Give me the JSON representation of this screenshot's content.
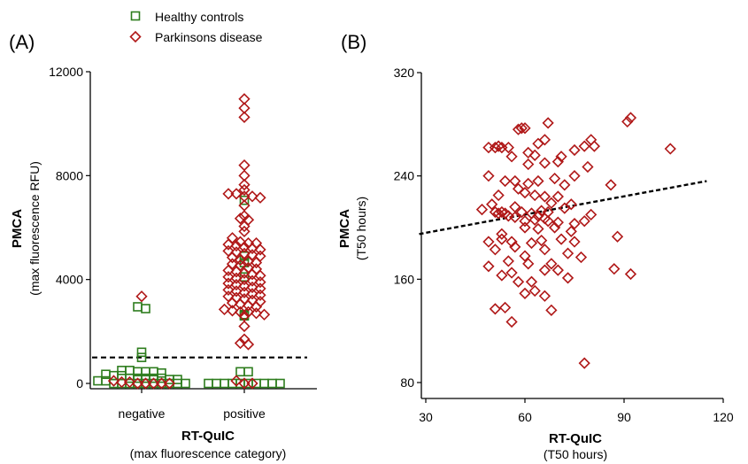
{
  "legend": [
    {
      "label": "Healthy controls",
      "marker": "square",
      "color": "#2e7d1e"
    },
    {
      "label": "Parkinsons disease",
      "marker": "diamond",
      "color": "#b01818"
    }
  ],
  "colors": {
    "healthy": "#2e7d1e",
    "parkinsons": "#b01818",
    "axis": "#000000"
  },
  "chart_data": [
    {
      "panel": "(A)",
      "type": "scatter",
      "xlabel": "RT-QuIC",
      "xlabel_sub": "(max fluorescence category)",
      "ylabel": "PMCA",
      "ylabel_sub": "(max fluorescence RFU)",
      "categories": [
        "negative",
        "positive"
      ],
      "ylim": [
        0,
        12000
      ],
      "yticks": [
        0,
        4000,
        8000,
        12000
      ],
      "threshold": 1000,
      "series": [
        {
          "name": "Healthy controls",
          "points": [
            [
              "negative",
              2950
            ],
            [
              "negative",
              2880
            ],
            [
              "negative",
              1200
            ],
            [
              "negative",
              1000
            ],
            [
              "negative",
              500
            ],
            [
              "negative",
              500
            ],
            [
              "negative",
              450
            ],
            [
              "negative",
              450
            ],
            [
              "negative",
              450
            ],
            [
              "negative",
              400
            ],
            [
              "negative",
              350
            ],
            [
              "negative",
              300
            ],
            [
              "negative",
              300
            ],
            [
              "negative",
              200
            ],
            [
              "negative",
              200
            ],
            [
              "negative",
              200
            ],
            [
              "negative",
              200
            ],
            [
              "negative",
              200
            ],
            [
              "negative",
              150
            ],
            [
              "negative",
              150
            ],
            [
              "negative",
              100
            ],
            [
              "negative",
              100
            ],
            [
              "negative",
              0
            ],
            [
              "negative",
              0
            ],
            [
              "negative",
              0
            ],
            [
              "negative",
              0
            ],
            [
              "negative",
              0
            ],
            [
              "negative",
              0
            ],
            [
              "negative",
              0
            ],
            [
              "negative",
              0
            ],
            [
              "negative",
              0
            ],
            [
              "negative",
              0
            ],
            [
              "positive",
              7050
            ],
            [
              "positive",
              4900
            ],
            [
              "positive",
              4650
            ],
            [
              "positive",
              4100
            ],
            [
              "positive",
              2650
            ],
            [
              "positive",
              2600
            ],
            [
              "positive",
              450
            ],
            [
              "positive",
              450
            ],
            [
              "positive",
              0
            ],
            [
              "positive",
              0
            ],
            [
              "positive",
              0
            ],
            [
              "positive",
              0
            ],
            [
              "positive",
              0
            ],
            [
              "positive",
              0
            ],
            [
              "positive",
              0
            ],
            [
              "positive",
              0
            ],
            [
              "positive",
              0
            ],
            [
              "positive",
              0
            ]
          ]
        },
        {
          "name": "Parkinsons disease",
          "points": [
            [
              "negative",
              3350
            ],
            [
              "negative",
              100
            ],
            [
              "negative",
              50
            ],
            [
              "negative",
              50
            ],
            [
              "negative",
              0
            ],
            [
              "negative",
              0
            ],
            [
              "negative",
              0
            ],
            [
              "negative",
              0
            ],
            [
              "negative",
              0
            ],
            [
              "positive",
              10950
            ],
            [
              "positive",
              10600
            ],
            [
              "positive",
              10250
            ],
            [
              "positive",
              8400
            ],
            [
              "positive",
              8000
            ],
            [
              "positive",
              7650
            ],
            [
              "positive",
              7450
            ],
            [
              "positive",
              7300
            ],
            [
              "positive",
              7300
            ],
            [
              "positive",
              7200
            ],
            [
              "positive",
              7200
            ],
            [
              "positive",
              7150
            ],
            [
              "positive",
              6850
            ],
            [
              "positive",
              6450
            ],
            [
              "positive",
              6350
            ],
            [
              "positive",
              6300
            ],
            [
              "positive",
              6050
            ],
            [
              "positive",
              5850
            ],
            [
              "positive",
              5600
            ],
            [
              "positive",
              5450
            ],
            [
              "positive",
              5400
            ],
            [
              "positive",
              5400
            ],
            [
              "positive",
              5350
            ],
            [
              "positive",
              5300
            ],
            [
              "positive",
              5250
            ],
            [
              "positive",
              5200
            ],
            [
              "positive",
              5150
            ],
            [
              "positive",
              5100
            ],
            [
              "positive",
              5050
            ],
            [
              "positive",
              5000
            ],
            [
              "positive",
              4950
            ],
            [
              "positive",
              4900
            ],
            [
              "positive",
              4850
            ],
            [
              "positive",
              4750
            ],
            [
              "positive",
              4700
            ],
            [
              "positive",
              4650
            ],
            [
              "positive",
              4600
            ],
            [
              "positive",
              4550
            ],
            [
              "positive",
              4450
            ],
            [
              "positive",
              4400
            ],
            [
              "positive",
              4350
            ],
            [
              "positive",
              4300
            ],
            [
              "positive",
              4250
            ],
            [
              "positive",
              4200
            ],
            [
              "positive",
              4150
            ],
            [
              "positive",
              4100
            ],
            [
              "positive",
              4050
            ],
            [
              "positive",
              4000
            ],
            [
              "positive",
              3950
            ],
            [
              "positive",
              3900
            ],
            [
              "positive",
              3850
            ],
            [
              "positive",
              3800
            ],
            [
              "positive",
              3750
            ],
            [
              "positive",
              3700
            ],
            [
              "positive",
              3650
            ],
            [
              "positive",
              3600
            ],
            [
              "positive",
              3550
            ],
            [
              "positive",
              3500
            ],
            [
              "positive",
              3450
            ],
            [
              "positive",
              3400
            ],
            [
              "positive",
              3350
            ],
            [
              "positive",
              3300
            ],
            [
              "positive",
              3250
            ],
            [
              "positive",
              3200
            ],
            [
              "positive",
              3150
            ],
            [
              "positive",
              3100
            ],
            [
              "positive",
              3050
            ],
            [
              "positive",
              3000
            ],
            [
              "positive",
              2950
            ],
            [
              "positive",
              2850
            ],
            [
              "positive",
              2800
            ],
            [
              "positive",
              2750
            ],
            [
              "positive",
              2750
            ],
            [
              "positive",
              2700
            ],
            [
              "positive",
              2650
            ],
            [
              "positive",
              2600
            ],
            [
              "positive",
              2200
            ],
            [
              "positive",
              1700
            ],
            [
              "positive",
              1550
            ],
            [
              "positive",
              1500
            ],
            [
              "positive",
              100
            ],
            [
              "positive",
              0
            ],
            [
              "positive",
              0
            ]
          ]
        }
      ]
    },
    {
      "panel": "(B)",
      "type": "scatter",
      "xlabel": "RT-QuIC",
      "xlabel_sub": "(T50 hours)",
      "ylabel": "PMCA",
      "ylabel_sub": "(T50 hours)",
      "xlim": [
        30,
        120
      ],
      "ylim": [
        80,
        320
      ],
      "xticks": [
        30,
        60,
        90,
        120
      ],
      "yticks": [
        80,
        160,
        240,
        320
      ],
      "trendline": {
        "x": [
          28,
          115
        ],
        "y": [
          195,
          236
        ]
      },
      "series": [
        {
          "name": "Parkinsons disease",
          "points": [
            [
              92,
              285
            ],
            [
              91,
              282
            ],
            [
              67,
              281
            ],
            [
              59,
              277
            ],
            [
              58,
              276
            ],
            [
              60,
              277
            ],
            [
              104,
              261
            ],
            [
              80,
              268
            ],
            [
              81,
              263
            ],
            [
              78,
              263
            ],
            [
              66,
              268
            ],
            [
              64,
              265
            ],
            [
              49,
              262
            ],
            [
              51,
              262
            ],
            [
              53,
              262
            ],
            [
              55,
              262
            ],
            [
              52,
              263
            ],
            [
              56,
              255
            ],
            [
              61,
              258
            ],
            [
              63,
              256
            ],
            [
              71,
              255
            ],
            [
              75,
              260
            ],
            [
              70,
              251
            ],
            [
              61,
              249
            ],
            [
              66,
              250
            ],
            [
              79,
              247
            ],
            [
              49,
              240
            ],
            [
              54,
              236
            ],
            [
              57,
              236
            ],
            [
              61,
              234
            ],
            [
              64,
              236
            ],
            [
              69,
              238
            ],
            [
              72,
              233
            ],
            [
              75,
              240
            ],
            [
              86,
              233
            ],
            [
              58,
              230
            ],
            [
              60,
              227
            ],
            [
              63,
              225
            ],
            [
              66,
              224
            ],
            [
              70,
              224
            ],
            [
              52,
              225
            ],
            [
              50,
              218
            ],
            [
              47,
              214
            ],
            [
              51,
              212
            ],
            [
              52,
              211
            ],
            [
              53,
              212
            ],
            [
              54,
              211
            ],
            [
              55,
              209
            ],
            [
              57,
              216
            ],
            [
              59,
              212
            ],
            [
              62,
              211
            ],
            [
              64,
              209
            ],
            [
              65,
              213
            ],
            [
              67,
              212
            ],
            [
              68,
              219
            ],
            [
              74,
              218
            ],
            [
              72,
              215
            ],
            [
              57,
              208
            ],
            [
              60,
              205
            ],
            [
              63,
              206
            ],
            [
              66,
              207
            ],
            [
              67,
              205
            ],
            [
              70,
              204
            ],
            [
              75,
              203
            ],
            [
              78,
              205
            ],
            [
              80,
              210
            ],
            [
              60,
              200
            ],
            [
              64,
              199
            ],
            [
              69,
              200
            ],
            [
              74,
              197
            ],
            [
              53,
              195
            ],
            [
              49,
              189
            ],
            [
              53,
              191
            ],
            [
              56,
              189
            ],
            [
              62,
              188
            ],
            [
              65,
              190
            ],
            [
              71,
              191
            ],
            [
              75,
              189
            ],
            [
              88,
              193
            ],
            [
              51,
              183
            ],
            [
              57,
              185
            ],
            [
              60,
              178
            ],
            [
              66,
              183
            ],
            [
              73,
              180
            ],
            [
              77,
              177
            ],
            [
              49,
              170
            ],
            [
              55,
              174
            ],
            [
              61,
              172
            ],
            [
              68,
              172
            ],
            [
              53,
              163
            ],
            [
              56,
              165
            ],
            [
              58,
              158
            ],
            [
              62,
              158
            ],
            [
              66,
              167
            ],
            [
              70,
              167
            ],
            [
              73,
              161
            ],
            [
              87,
              168
            ],
            [
              92,
              164
            ],
            [
              63,
              151
            ],
            [
              60,
              149
            ],
            [
              51,
              137
            ],
            [
              54,
              138
            ],
            [
              66,
              147
            ],
            [
              68,
              136
            ],
            [
              56,
              127
            ],
            [
              78,
              95
            ]
          ]
        }
      ]
    }
  ]
}
